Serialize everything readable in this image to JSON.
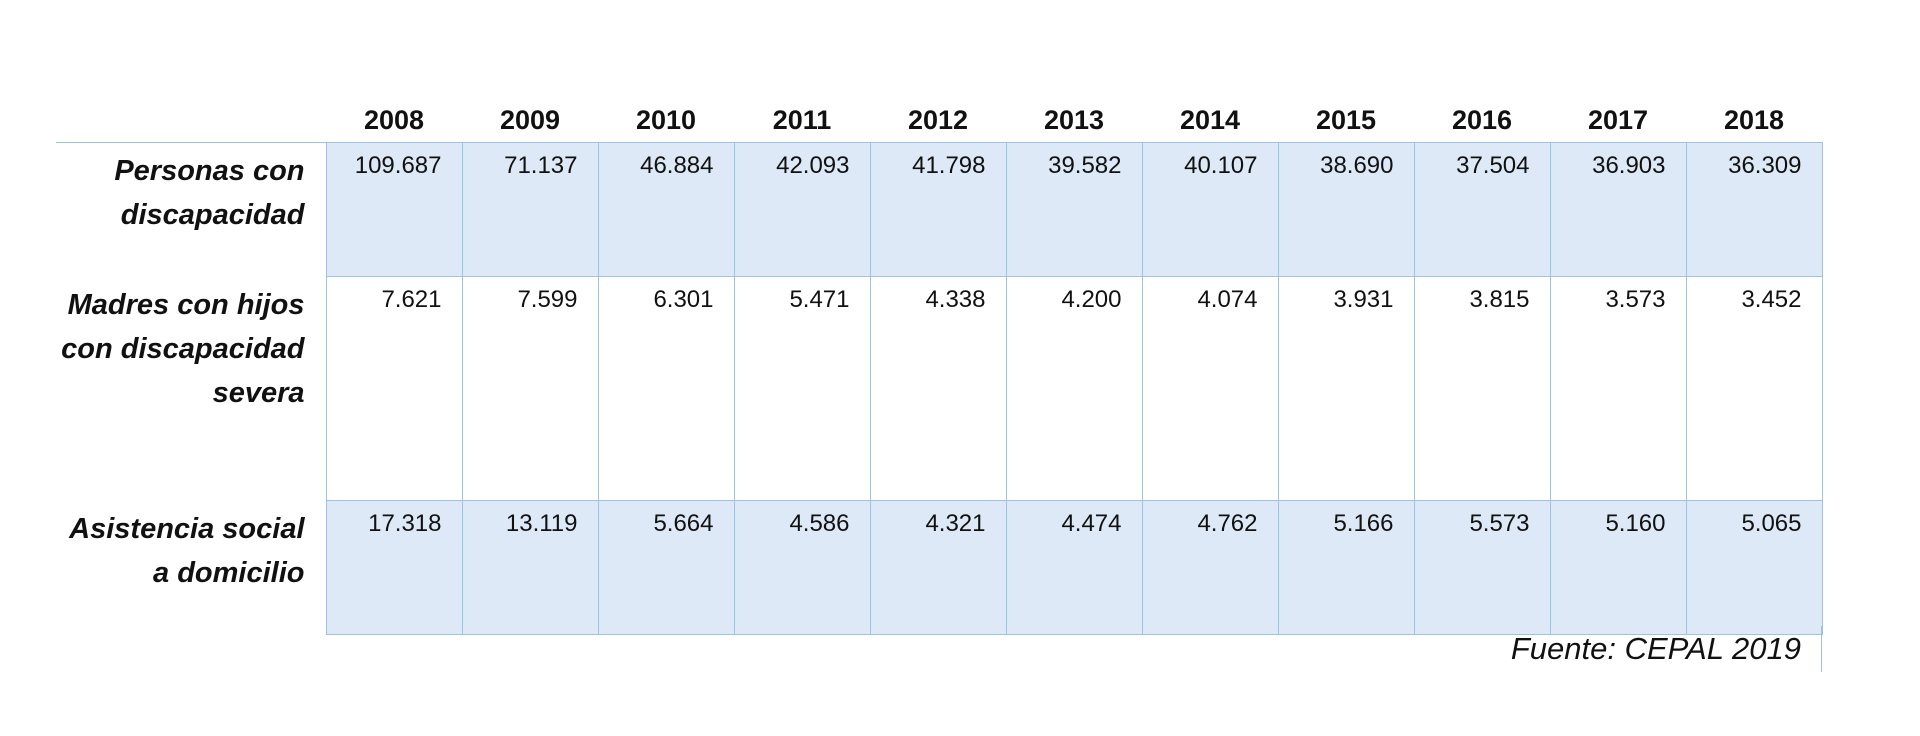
{
  "table": {
    "years": [
      "2008",
      "2009",
      "2010",
      "2011",
      "2012",
      "2013",
      "2014",
      "2015",
      "2016",
      "2017",
      "2018"
    ],
    "rows": [
      {
        "label": "Personas con discapacidad",
        "values": [
          "109.687",
          "71.137",
          "46.884",
          "42.093",
          "41.798",
          "39.582",
          "40.107",
          "38.690",
          "37.504",
          "36.903",
          "36.309"
        ]
      },
      {
        "label": "Madres con hijos con discapacidad severa",
        "values": [
          "7.621",
          "7.599",
          "6.301",
          "5.471",
          "4.338",
          "4.200",
          "4.074",
          "3.931",
          "3.815",
          "3.573",
          "3.452"
        ]
      },
      {
        "label": "Asistencia social a domicilio",
        "values": [
          "17.318",
          "13.119",
          "5.664",
          "4.586",
          "4.321",
          "4.474",
          "4.762",
          "5.166",
          "5.573",
          "5.160",
          "5.065"
        ]
      }
    ]
  },
  "source": "Fuente: CEPAL 2019",
  "colors": {
    "row_shade": "#dde9f6",
    "grid_line": "#9cc3e5"
  }
}
